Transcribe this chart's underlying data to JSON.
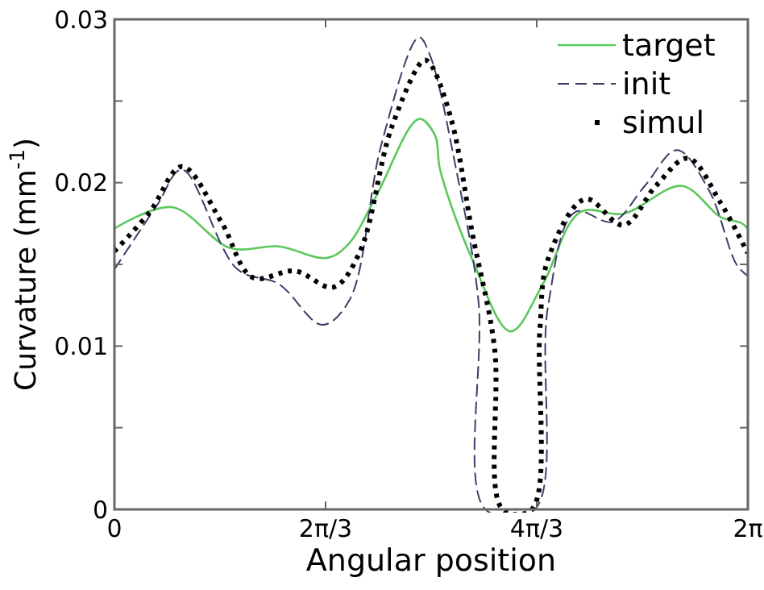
{
  "chart_data": {
    "type": "line",
    "xlabel": "Angular position",
    "ylabel": "Curvature (mm$^{-1}$)",
    "xlim": [
      0,
      6.2832
    ],
    "xticks": [
      {
        "value": 0,
        "label": "0"
      },
      {
        "value": 2.0944,
        "label": "2π/3"
      },
      {
        "value": 4.1888,
        "label": "4π/3"
      },
      {
        "value": 6.2832,
        "label": "2π"
      }
    ],
    "ylim": [
      0,
      0.03
    ],
    "yticks": [
      {
        "value": 0,
        "label": "0"
      },
      {
        "value": 0.005,
        "label": null
      },
      {
        "value": 0.01,
        "label": "0.01"
      },
      {
        "value": 0.015,
        "label": null
      },
      {
        "value": 0.02,
        "label": "0.02"
      },
      {
        "value": 0.025,
        "label": null
      },
      {
        "value": 0.03,
        "label": "0.03"
      }
    ],
    "grid": false,
    "legend": "top right",
    "marker": "none",
    "series": [
      {
        "name": "target",
        "color": "#5cc85c",
        "line_style": "solid",
        "x": [
          0,
          0.57,
          1.15,
          1.63,
          2.11,
          2.33,
          2.59,
          3.02,
          3.18,
          3.23,
          3.55,
          3.93,
          4.25,
          4.62,
          5.05,
          5.63,
          6.01,
          6.28,
          6.28
        ],
        "values": [
          0.0172,
          0.0185,
          0.016,
          0.0161,
          0.0154,
          0.0163,
          0.0191,
          0.0239,
          0.0229,
          0.0208,
          0.0153,
          0.0109,
          0.0138,
          0.0182,
          0.0181,
          0.0198,
          0.0179,
          0.0172,
          0.0052
        ]
      },
      {
        "name": "init",
        "color": "#3a3f6a",
        "line_style": "dashed",
        "x": [
          0,
          0.42,
          0.67,
          1.22,
          1.63,
          2.06,
          2.33,
          2.65,
          3.02,
          3.13,
          3.39,
          3.61,
          3.68,
          4.17,
          4.3,
          4.57,
          4.94,
          5.26,
          5.58,
          5.9,
          6.17,
          6.28
        ],
        "values": [
          0.0147,
          0.0186,
          0.0208,
          0.0147,
          0.0138,
          0.0113,
          0.0128,
          0.0224,
          0.0289,
          0.0278,
          0.0208,
          0.0128,
          0,
          0,
          0.0124,
          0.0182,
          0.0176,
          0.0198,
          0.022,
          0.0195,
          0.015,
          0.0143
        ]
      },
      {
        "name": "simul",
        "color": "#000000",
        "line_style": "dotted",
        "x": [
          0,
          0.35,
          0.67,
          1.06,
          1.37,
          1.79,
          2.17,
          2.43,
          2.75,
          3.07,
          3.13,
          3.34,
          3.55,
          3.77,
          3.85,
          4.14,
          4.22,
          4.3,
          4.67,
          5.05,
          5.37,
          5.69,
          6.01,
          6.28
        ],
        "values": [
          0.0158,
          0.0182,
          0.021,
          0.0176,
          0.0142,
          0.0146,
          0.0136,
          0.0157,
          0.0234,
          0.0275,
          0.0273,
          0.0239,
          0.0169,
          0.0099,
          0,
          0,
          0.011,
          0.0153,
          0.019,
          0.0174,
          0.0198,
          0.0215,
          0.0188,
          0.0157
        ]
      }
    ]
  }
}
